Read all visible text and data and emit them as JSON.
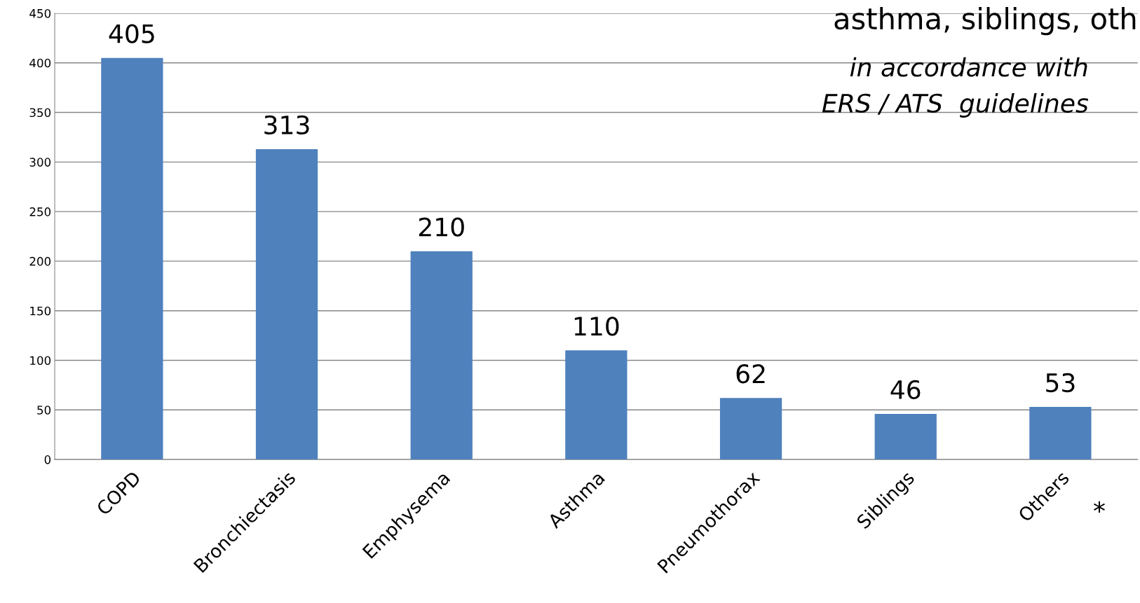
{
  "chart_data": {
    "type": "bar",
    "categories": [
      "COPD",
      "Bronchiectasis",
      "Emphysema",
      "Asthma",
      "Pneumothorax",
      "Siblings",
      "Others"
    ],
    "values": [
      405,
      313,
      210,
      110,
      62,
      46,
      53
    ],
    "color": "#4f81bd",
    "ylim": [
      0,
      450
    ],
    "yticks": [
      0,
      50,
      100,
      150,
      200,
      250,
      300,
      350,
      400,
      450
    ],
    "grid": "y",
    "data_labels": true,
    "annotations": [
      "asthma, siblings, oth",
      "in accordance with\nERS / ATS  guidelines",
      {
        "text": "*",
        "x": "Others",
        "y": 0
      }
    ]
  }
}
